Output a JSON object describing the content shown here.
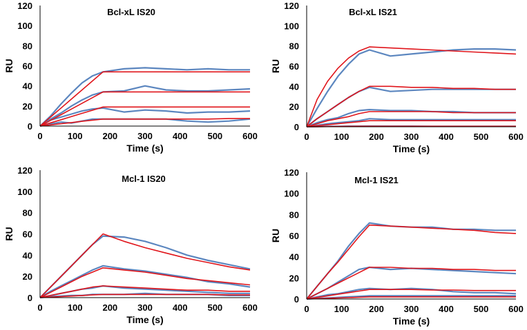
{
  "colors": {
    "measured": "#5b86bf",
    "fit": "#e0141a",
    "axis": "#000000"
  },
  "chart_data": [
    {
      "type": "line",
      "title": "Bcl-xL IS20",
      "xlabel": "Time (s)",
      "ylabel": "RU",
      "xlim": [
        0,
        600
      ],
      "ylim": [
        0,
        120
      ],
      "xticks": [
        0,
        100,
        200,
        300,
        400,
        500,
        600
      ],
      "yticks": [
        0,
        20,
        40,
        60,
        80,
        100,
        120
      ],
      "grid": false,
      "x": [
        0,
        30,
        60,
        90,
        120,
        150,
        180,
        240,
        300,
        360,
        420,
        480,
        540,
        600
      ],
      "measured": [
        [
          0,
          10,
          22,
          33,
          43,
          50,
          54,
          57,
          58,
          57,
          56,
          57,
          56,
          56
        ],
        [
          0,
          7,
          13,
          20,
          26,
          31,
          34,
          35,
          40,
          36,
          35,
          35,
          36,
          37
        ],
        [
          0,
          6,
          9,
          12,
          15,
          17,
          18,
          14,
          16,
          15,
          13,
          14,
          14,
          15
        ],
        [
          0,
          2,
          4,
          3,
          5,
          7,
          7,
          7,
          7,
          7,
          5,
          4,
          5,
          7
        ]
      ],
      "fit": [
        [
          0,
          9,
          18,
          27,
          36,
          45,
          54,
          54,
          54,
          54,
          54,
          54,
          54,
          54
        ],
        [
          0,
          5.7,
          11.3,
          17,
          22.7,
          28.3,
          34,
          34,
          34,
          34,
          34,
          34,
          34,
          34
        ],
        [
          0,
          3.2,
          6.3,
          9.5,
          12.7,
          15.8,
          19,
          19,
          19,
          19,
          19,
          19,
          19,
          19
        ],
        [
          0,
          1.2,
          2.3,
          3.5,
          4.7,
          5.8,
          7,
          7,
          7,
          7,
          7,
          7,
          7.5,
          7.5
        ]
      ]
    },
    {
      "type": "line",
      "title": "Bcl-xL IS21",
      "xlabel": "Time (s)",
      "ylabel": "RU",
      "xlim": [
        0,
        600
      ],
      "ylim": [
        0,
        120
      ],
      "xticks": [
        0,
        100,
        200,
        300,
        400,
        500,
        600
      ],
      "yticks": [
        0,
        20,
        40,
        60,
        80,
        100,
        120
      ],
      "grid": false,
      "x": [
        0,
        30,
        60,
        90,
        120,
        150,
        180,
        240,
        300,
        360,
        420,
        480,
        540,
        600
      ],
      "measured": [
        [
          0,
          18,
          35,
          50,
          62,
          72,
          76,
          70,
          72,
          74,
          76,
          77,
          77,
          76
        ],
        [
          0,
          8,
          15,
          22,
          29,
          35,
          39,
          35,
          36,
          37,
          37,
          37,
          37,
          37
        ],
        [
          0,
          4,
          7,
          9,
          13,
          16,
          17,
          16,
          16,
          15,
          15,
          14,
          14,
          14
        ],
        [
          0,
          1.5,
          3,
          4,
          5,
          6,
          8,
          7,
          7,
          7,
          7,
          7,
          7,
          7
        ],
        [
          0,
          0.3,
          0.5,
          0.5,
          0.6,
          0.6,
          0.7,
          0.6,
          0.6,
          0.5,
          0.5,
          0.5,
          0.5,
          0.5
        ]
      ],
      "fit": [
        [
          0,
          27,
          45,
          58,
          68,
          75,
          79,
          78,
          77,
          76,
          75,
          74,
          73,
          72
        ],
        [
          0,
          8,
          15,
          22,
          29,
          35,
          40,
          40,
          39,
          39,
          38,
          38,
          37,
          37
        ],
        [
          0,
          3,
          6,
          8,
          10,
          13,
          15,
          15,
          15,
          15,
          14,
          14,
          14,
          14
        ],
        [
          0,
          1,
          2,
          3,
          4,
          5,
          6,
          6,
          6,
          6,
          6,
          6,
          6,
          6
        ],
        [
          0,
          0.1,
          0.2,
          0.3,
          0.4,
          0.5,
          0.5,
          0.5,
          0.5,
          0.5,
          0.5,
          0.5,
          0.5,
          0.5
        ]
      ]
    },
    {
      "type": "line",
      "title": "Mcl-1 IS20",
      "xlabel": "Time (s)",
      "ylabel": "RU",
      "xlim": [
        0,
        600
      ],
      "ylim": [
        0,
        120
      ],
      "xticks": [
        0,
        100,
        200,
        300,
        400,
        500,
        600
      ],
      "yticks": [
        0,
        20,
        40,
        60,
        80,
        100,
        120
      ],
      "grid": false,
      "x": [
        0,
        30,
        60,
        90,
        120,
        150,
        180,
        240,
        300,
        360,
        420,
        480,
        540,
        600
      ],
      "measured": [
        [
          0,
          10,
          20,
          30,
          40,
          50,
          58,
          57,
          53,
          47,
          40,
          35,
          31,
          27
        ],
        [
          0,
          6,
          11,
          16,
          21,
          26,
          30,
          27,
          25,
          22,
          19,
          15,
          13,
          10
        ],
        [
          0,
          2,
          4,
          6,
          8,
          9,
          11,
          9,
          8,
          7,
          6,
          5,
          4,
          4
        ],
        [
          0,
          1,
          1.5,
          2,
          2,
          3,
          3,
          3,
          4,
          3,
          3,
          3,
          2,
          2
        ]
      ],
      "fit": [
        [
          0,
          10,
          20,
          30,
          40,
          50,
          60,
          53,
          47,
          42,
          37,
          33,
          29,
          26
        ],
        [
          0,
          5,
          10,
          15,
          20,
          24,
          28,
          26,
          24,
          21,
          18,
          16,
          14,
          12
        ],
        [
          0,
          2,
          4,
          6,
          8,
          10,
          11,
          10,
          9,
          8,
          7,
          7,
          6,
          6
        ],
        [
          0,
          0.5,
          1,
          1.5,
          2,
          2.5,
          3,
          3,
          3,
          3,
          3,
          3,
          2.5,
          2.5
        ]
      ]
    },
    {
      "type": "line",
      "title": "Mcl-1 IS21",
      "xlabel": "Time (s)",
      "ylabel": "RU",
      "xlim": [
        0,
        600
      ],
      "ylim": [
        0,
        120
      ],
      "xticks": [
        0,
        100,
        200,
        300,
        400,
        500,
        600
      ],
      "yticks": [
        0,
        20,
        40,
        60,
        80,
        100,
        120
      ],
      "grid": false,
      "x": [
        0,
        30,
        60,
        90,
        120,
        150,
        180,
        240,
        300,
        360,
        420,
        480,
        540,
        600
      ],
      "measured": [
        [
          0,
          12,
          24,
          36,
          50,
          62,
          72,
          69,
          68,
          68,
          66,
          66,
          65,
          65
        ],
        [
          0,
          5,
          10,
          16,
          22,
          28,
          30,
          28,
          29,
          28,
          27,
          26,
          25,
          24
        ],
        [
          0,
          2,
          4,
          5,
          7,
          9,
          10,
          9,
          10,
          9,
          7,
          6,
          6,
          5
        ],
        [
          0,
          0.5,
          1,
          1.5,
          2,
          2.5,
          3,
          3,
          3,
          3,
          3,
          3,
          3,
          3
        ]
      ],
      "fit": [
        [
          0,
          12,
          24,
          35,
          47,
          59,
          70,
          69,
          68,
          67,
          66,
          65,
          63,
          62
        ],
        [
          0,
          5,
          10,
          15,
          20,
          25,
          30,
          30,
          29,
          29,
          28,
          28,
          27,
          27
        ],
        [
          0,
          1.5,
          3,
          4.5,
          6,
          7.5,
          9,
          9,
          9,
          8.5,
          8.5,
          8,
          8,
          8
        ],
        [
          0,
          0.3,
          0.6,
          1,
          1.3,
          1.6,
          2,
          2,
          2,
          2,
          2,
          2,
          2,
          2
        ]
      ]
    }
  ]
}
